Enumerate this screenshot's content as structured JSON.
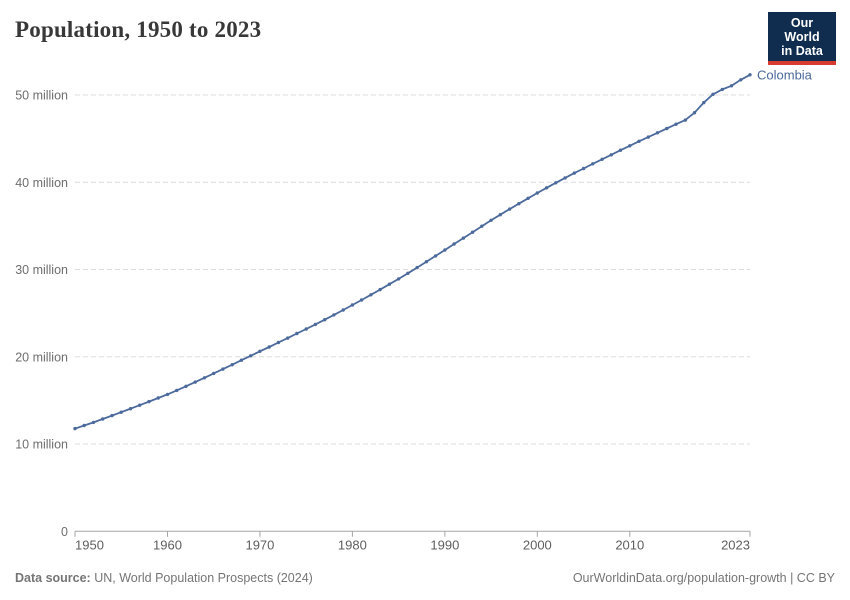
{
  "header": {
    "title": "Population, 1950 to 2023"
  },
  "logo": {
    "line1": "Our World",
    "line2": "in Data",
    "bg_color": "#102d50",
    "accent_color": "#d63b2f"
  },
  "footer": {
    "source_label": "Data source:",
    "source_text": " UN, World Population Prospects (2024)",
    "attribution": "OurWorldinData.org/population-growth | CC BY"
  },
  "chart_data": {
    "type": "line",
    "title": "Population, 1950 to 2023",
    "xlabel": "",
    "ylabel": "",
    "xlim": [
      1950,
      2023
    ],
    "ylim": [
      0,
      54
    ],
    "grid": "horizontal-dashed",
    "legend_position": "end-of-line-label",
    "x_ticks": [
      1950,
      1960,
      1970,
      1980,
      1990,
      2000,
      2010,
      2023
    ],
    "y_ticks": [
      {
        "value": 0,
        "label": "0"
      },
      {
        "value": 10,
        "label": "10 million"
      },
      {
        "value": 20,
        "label": "20 million"
      },
      {
        "value": 30,
        "label": "30 million"
      },
      {
        "value": 40,
        "label": "40 million"
      },
      {
        "value": 50,
        "label": "50 million"
      }
    ],
    "unit": "million people",
    "series": [
      {
        "name": "Colombia",
        "color": "#4c6a9c",
        "x": [
          1950,
          1951,
          1952,
          1953,
          1954,
          1955,
          1956,
          1957,
          1958,
          1959,
          1960,
          1961,
          1962,
          1963,
          1964,
          1965,
          1966,
          1967,
          1968,
          1969,
          1970,
          1971,
          1972,
          1973,
          1974,
          1975,
          1976,
          1977,
          1978,
          1979,
          1980,
          1981,
          1982,
          1983,
          1984,
          1985,
          1986,
          1987,
          1988,
          1989,
          1990,
          1991,
          1992,
          1993,
          1994,
          1995,
          1996,
          1997,
          1998,
          1999,
          2000,
          2001,
          2002,
          2003,
          2004,
          2005,
          2006,
          2007,
          2008,
          2009,
          2010,
          2011,
          2012,
          2013,
          2014,
          2015,
          2016,
          2017,
          2018,
          2019,
          2020,
          2021,
          2022,
          2023
        ],
        "values": [
          11.77,
          12.12,
          12.48,
          12.86,
          13.25,
          13.65,
          14.05,
          14.45,
          14.86,
          15.27,
          15.68,
          16.14,
          16.61,
          17.1,
          17.59,
          18.09,
          18.59,
          19.09,
          19.6,
          20.11,
          20.62,
          21.12,
          21.63,
          22.14,
          22.66,
          23.18,
          23.71,
          24.25,
          24.8,
          25.36,
          25.93,
          26.51,
          27.1,
          27.7,
          28.31,
          28.92,
          29.57,
          30.22,
          30.89,
          31.56,
          32.24,
          32.92,
          33.6,
          34.28,
          34.96,
          35.64,
          36.28,
          36.92,
          37.54,
          38.16,
          38.77,
          39.36,
          39.94,
          40.5,
          41.05,
          41.58,
          42.11,
          42.63,
          43.15,
          43.67,
          44.18,
          44.69,
          45.18,
          45.67,
          46.16,
          46.65,
          47.12,
          47.97,
          49.13,
          50.08,
          50.64,
          51.05,
          51.74,
          52.32
        ]
      }
    ],
    "colors": {
      "grid": "#dcdcdc",
      "axis": "#a5a5a5",
      "tick_label": "#5f5f5f",
      "series_label": "#4c6a9c"
    }
  }
}
